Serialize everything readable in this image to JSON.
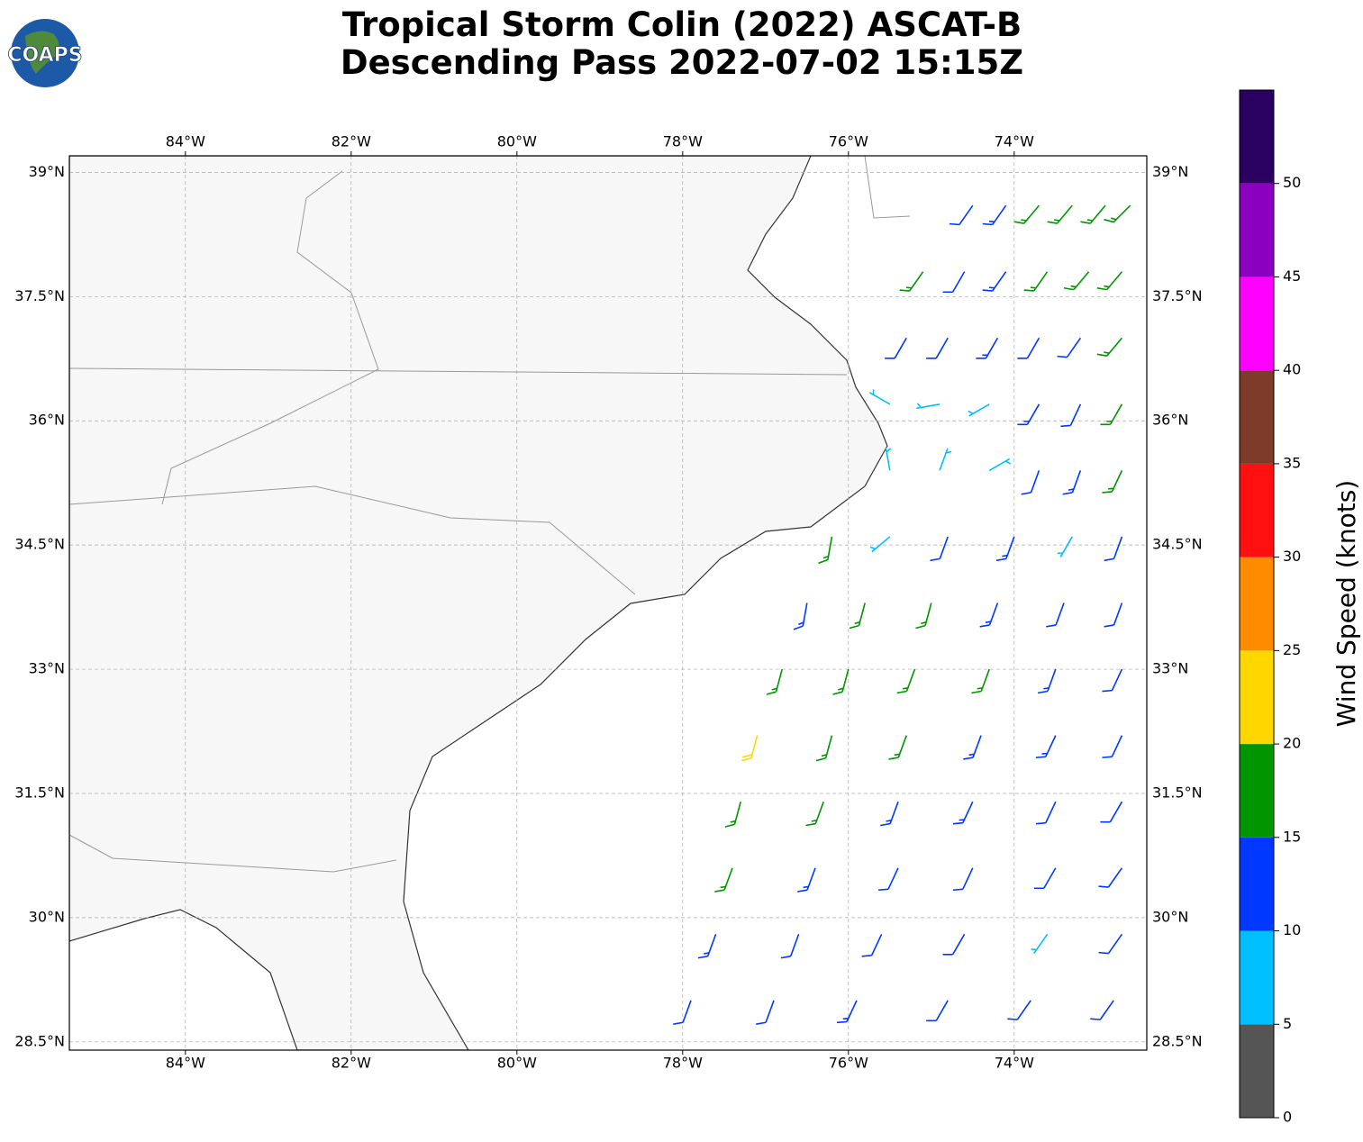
{
  "header": {
    "title_line1": "Tropical Storm Colin (2022) ASCAT-B",
    "title_line2": "Descending Pass 2022-07-02 15:15Z",
    "logo": "COAPS"
  },
  "map": {
    "xlim": [
      -85.4,
      -72.4
    ],
    "ylim": [
      28.4,
      39.2
    ],
    "xticks": [
      {
        "value": -84,
        "label": "84°W"
      },
      {
        "value": -82,
        "label": "82°W"
      },
      {
        "value": -80,
        "label": "80°W"
      },
      {
        "value": -78,
        "label": "78°W"
      },
      {
        "value": -76,
        "label": "76°W"
      },
      {
        "value": -74,
        "label": "74°W"
      }
    ],
    "yticks": [
      {
        "value": 39,
        "label": "39°N"
      },
      {
        "value": 37.5,
        "label": "37.5°N"
      },
      {
        "value": 36,
        "label": "36°N"
      },
      {
        "value": 34.5,
        "label": "34.5°N"
      },
      {
        "value": 33,
        "label": "33°N"
      },
      {
        "value": 31.5,
        "label": "31.5°N"
      },
      {
        "value": 30,
        "label": "30°N"
      },
      {
        "value": 28.5,
        "label": "28.5°N"
      }
    ],
    "grid": true
  },
  "colorbar": {
    "label": "Wind Speed (knots)",
    "bounds": [
      0,
      5,
      10,
      15,
      20,
      25,
      30,
      35,
      40,
      45,
      50,
      55
    ],
    "ticks": [
      0,
      5,
      10,
      15,
      20,
      25,
      30,
      35,
      40,
      45,
      50
    ],
    "colors": [
      "#555555",
      "#00bfff",
      "#0038ff",
      "#009600",
      "#ffd700",
      "#ff8c00",
      "#ff1010",
      "#7f3b2a",
      "#ff00ff",
      "#8b00c0",
      "#2a0060"
    ]
  },
  "barbs": [
    [
      -77.9,
      29.0,
      12,
      200
    ],
    [
      -76.9,
      29.0,
      12,
      200
    ],
    [
      -75.9,
      29.0,
      13,
      205
    ],
    [
      -74.8,
      29.0,
      12,
      210
    ],
    [
      -73.8,
      29.0,
      11,
      215
    ],
    [
      -72.8,
      29.0,
      12,
      215
    ],
    [
      -77.6,
      29.8,
      13,
      200
    ],
    [
      -76.6,
      29.8,
      12,
      200
    ],
    [
      -75.6,
      29.8,
      12,
      205
    ],
    [
      -74.6,
      29.8,
      11,
      210
    ],
    [
      -73.6,
      29.8,
      8,
      215
    ],
    [
      -72.7,
      29.8,
      11,
      215
    ],
    [
      -77.4,
      30.6,
      16,
      200
    ],
    [
      -76.4,
      30.6,
      13,
      200
    ],
    [
      -75.4,
      30.6,
      12,
      205
    ],
    [
      -74.5,
      30.6,
      12,
      205
    ],
    [
      -73.5,
      30.6,
      11,
      210
    ],
    [
      -72.7,
      30.6,
      11,
      215
    ],
    [
      -77.3,
      31.4,
      17,
      195
    ],
    [
      -76.3,
      31.4,
      17,
      200
    ],
    [
      -75.4,
      31.4,
      14,
      200
    ],
    [
      -74.5,
      31.4,
      13,
      205
    ],
    [
      -73.5,
      31.4,
      12,
      205
    ],
    [
      -72.7,
      31.4,
      12,
      210
    ],
    [
      -77.1,
      32.2,
      22,
      195
    ],
    [
      -76.2,
      32.2,
      17,
      195
    ],
    [
      -75.3,
      32.2,
      17,
      200
    ],
    [
      -74.4,
      32.2,
      14,
      200
    ],
    [
      -73.5,
      32.2,
      13,
      205
    ],
    [
      -72.7,
      32.2,
      12,
      205
    ],
    [
      -76.8,
      33.0,
      17,
      195
    ],
    [
      -76.0,
      33.0,
      17,
      195
    ],
    [
      -75.2,
      33.0,
      17,
      200
    ],
    [
      -74.3,
      33.0,
      16,
      200
    ],
    [
      -73.5,
      33.0,
      13,
      200
    ],
    [
      -72.7,
      33.0,
      12,
      205
    ],
    [
      -76.5,
      33.8,
      13,
      190
    ],
    [
      -75.8,
      33.8,
      16,
      195
    ],
    [
      -75.0,
      33.8,
      17,
      195
    ],
    [
      -74.2,
      33.8,
      13,
      200
    ],
    [
      -73.4,
      33.8,
      12,
      200
    ],
    [
      -72.7,
      33.8,
      12,
      200
    ],
    [
      -76.2,
      34.6,
      16,
      190
    ],
    [
      -75.5,
      34.6,
      8,
      230
    ],
    [
      -74.8,
      34.6,
      12,
      200
    ],
    [
      -74.0,
      34.6,
      13,
      200
    ],
    [
      -73.3,
      34.6,
      8,
      210
    ],
    [
      -72.7,
      34.6,
      12,
      200
    ],
    [
      -75.5,
      35.4,
      7,
      350
    ],
    [
      -74.9,
      35.4,
      8,
      20
    ],
    [
      -74.3,
      35.4,
      7,
      60
    ],
    [
      -73.7,
      35.4,
      12,
      200
    ],
    [
      -73.2,
      35.4,
      13,
      200
    ],
    [
      -72.7,
      35.4,
      16,
      205
    ],
    [
      -75.5,
      36.2,
      7,
      300
    ],
    [
      -74.9,
      36.2,
      8,
      260
    ],
    [
      -74.3,
      36.2,
      7,
      240
    ],
    [
      -73.7,
      36.2,
      13,
      210
    ],
    [
      -73.2,
      36.2,
      12,
      205
    ],
    [
      -72.7,
      36.2,
      16,
      210
    ],
    [
      -75.3,
      37.0,
      12,
      210
    ],
    [
      -74.8,
      37.0,
      12,
      210
    ],
    [
      -74.2,
      37.0,
      13,
      210
    ],
    [
      -73.7,
      37.0,
      12,
      210
    ],
    [
      -73.2,
      37.0,
      12,
      215
    ],
    [
      -72.7,
      37.0,
      17,
      220
    ],
    [
      -75.1,
      37.8,
      17,
      215
    ],
    [
      -74.6,
      37.8,
      12,
      210
    ],
    [
      -74.1,
      37.8,
      13,
      215
    ],
    [
      -73.6,
      37.8,
      16,
      215
    ],
    [
      -73.1,
      37.8,
      17,
      220
    ],
    [
      -72.7,
      37.8,
      17,
      220
    ],
    [
      -74.5,
      38.6,
      12,
      215
    ],
    [
      -74.1,
      38.6,
      13,
      215
    ],
    [
      -73.7,
      38.6,
      17,
      220
    ],
    [
      -73.3,
      38.6,
      16,
      220
    ],
    [
      -72.9,
      38.6,
      17,
      220
    ],
    [
      -72.6,
      38.6,
      17,
      225
    ]
  ]
}
